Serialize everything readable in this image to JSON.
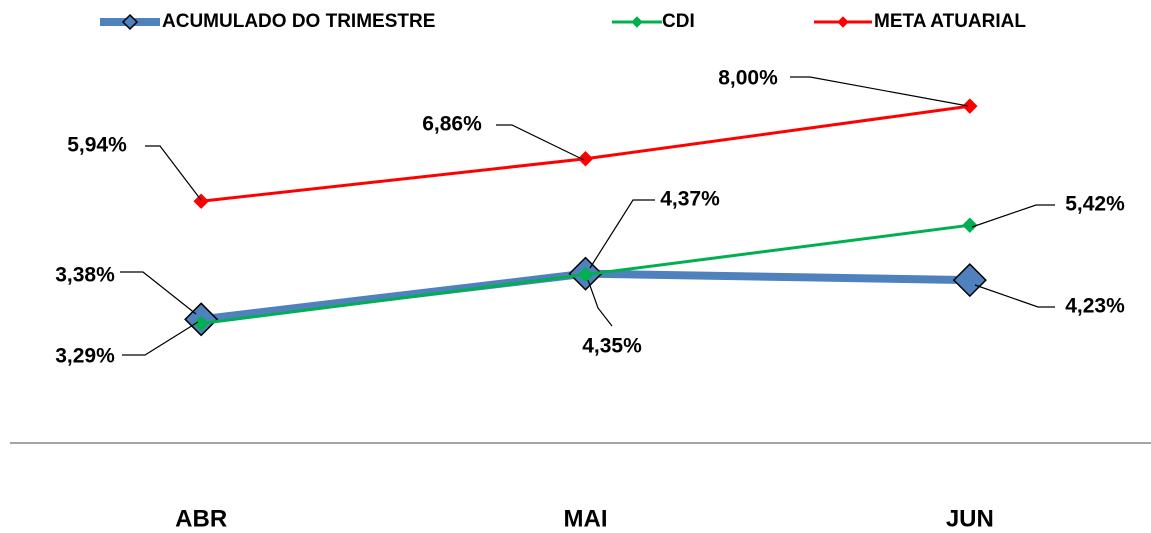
{
  "chart_data": {
    "type": "line",
    "categories": [
      "ABR",
      "MAI",
      "JUN"
    ],
    "ylim": [
      0.7,
      9.0
    ],
    "series": [
      {
        "name": "ACUMULADO DO TRIMESTRE",
        "color": "#4f81bd",
        "values": [
          3.38,
          4.37,
          4.23
        ],
        "value_labels": [
          "3,38%",
          "4,37%",
          "4,23%"
        ]
      },
      {
        "name": "CDI",
        "color": "#00b050",
        "values": [
          3.29,
          4.35,
          5.42
        ],
        "value_labels": [
          "3,29%",
          "4,35%",
          "5,42%"
        ]
      },
      {
        "name": "META ATUARIAL",
        "color": "#ff0000",
        "values": [
          5.94,
          6.86,
          8.0
        ],
        "value_labels": [
          "5,94%",
          "6,86%",
          "8,00%"
        ]
      }
    ],
    "legend": "top"
  }
}
